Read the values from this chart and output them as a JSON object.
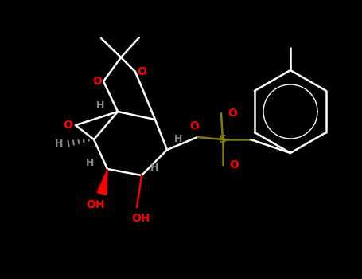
{
  "bg_color": "#000000",
  "bond_color": "#ffffff",
  "O_color": "#ff0000",
  "S_color": "#808000",
  "H_color": "#888888",
  "fig_w": 4.55,
  "fig_h": 3.5,
  "dpi": 100,
  "xlim": [
    0,
    455
  ],
  "ylim": [
    0,
    350
  ]
}
